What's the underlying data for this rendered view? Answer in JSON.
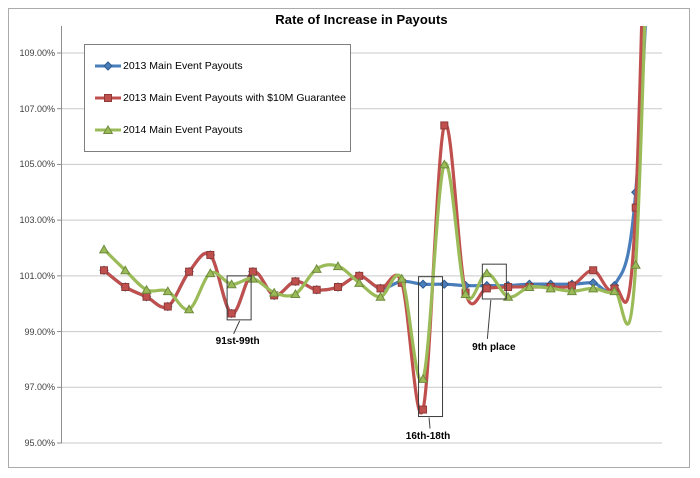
{
  "chart_title": "Rate of Increase in Payouts",
  "y_axis": {
    "tick_labels": [
      "109.00%",
      "107.00%",
      "105.00%",
      "103.00%",
      "101.00%",
      "99.00%",
      "97.00%",
      "95.00%"
    ],
    "min": 95,
    "max": 109,
    "step": 2
  },
  "legend": {
    "items": [
      {
        "label": "2013 Main Event Payouts",
        "color": "#4A7EBB",
        "edge_color": "#2E5A8F",
        "marker": "diamond"
      },
      {
        "label": "2013 Main Event Payouts with $10M Guarantee",
        "color": "#C0504D",
        "edge_color": "#8E3B38",
        "marker": "square"
      },
      {
        "label": "2014 Main Event Payouts",
        "color": "#9BBB59",
        "edge_color": "#6E8B3D",
        "marker": "triangle"
      }
    ]
  },
  "colors": {
    "gridline": "#c9c9c9",
    "axis": "#8e8e8e",
    "annotation_box": "#3c3c3c",
    "chart_border": "#ababab"
  },
  "chart_data": {
    "type": "line",
    "title": "Rate of Increase in Payouts",
    "xlabel": "",
    "ylabel": "",
    "x_tick_labels": "none (unlabeled payout-place positions, lowest finishes left to 1st place right)",
    "ylim": [
      95,
      109
    ],
    "y_tick_step": 2,
    "y_tick_format": "0.00%",
    "grid": true,
    "smoothed_lines": true,
    "legend_position": "inside top-left",
    "series": [
      {
        "name": "2013 Main Event Payouts",
        "color": "#4A7EBB",
        "marker": "diamond",
        "values": [
          101.2,
          100.6,
          100.25,
          99.9,
          101.15,
          101.75,
          99.65,
          101.15,
          100.3,
          100.8,
          100.5,
          100.6,
          101.0,
          100.55,
          100.8,
          100.7,
          100.7,
          100.65,
          100.65,
          100.65,
          100.7,
          100.7,
          100.7,
          100.75,
          100.65,
          104.0,
          119
        ]
      },
      {
        "name": "2013 Main Event Payouts with $10M Guarantee",
        "color": "#C0504D",
        "marker": "square",
        "values": [
          101.2,
          100.6,
          100.25,
          99.9,
          101.15,
          101.75,
          99.65,
          101.15,
          100.3,
          100.8,
          100.5,
          100.6,
          101.0,
          100.55,
          100.75,
          96.2,
          106.4,
          100.4,
          100.55,
          100.6,
          100.6,
          100.6,
          100.65,
          101.2,
          100.55,
          103.45,
          134
        ]
      },
      {
        "name": "2014 Main Event Payouts",
        "color": "#9BBB59",
        "marker": "triangle",
        "values": [
          101.95,
          101.2,
          100.5,
          100.45,
          99.8,
          101.1,
          100.7,
          100.9,
          100.4,
          100.35,
          101.25,
          101.35,
          100.75,
          100.25,
          100.9,
          97.3,
          105.0,
          100.35,
          101.1,
          100.25,
          100.6,
          100.55,
          100.45,
          100.55,
          100.45,
          101.4,
          126
        ]
      }
    ],
    "annotations": [
      {
        "label": "91st-99th",
        "x_index": 6,
        "box_v_top": 101.0,
        "box_v_bottom": 99.42
      },
      {
        "label": "16th-18th",
        "x_index": 15,
        "box_v_top": 100.97,
        "box_v_bottom": 95.95
      },
      {
        "label": "9th place",
        "x_index": 18,
        "box_v_top": 101.42,
        "box_v_bottom": 100.17
      }
    ]
  }
}
